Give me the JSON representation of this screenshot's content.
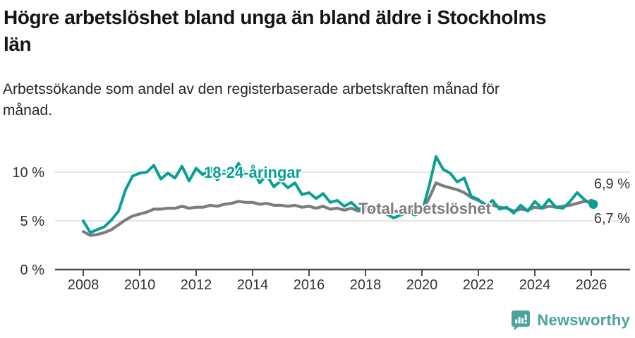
{
  "header": {
    "title_lines": [
      "Högre arbetslöshet bland unga än bland äldre i Stockholms",
      "län"
    ],
    "subtitle_lines": [
      "Arbetssökande som andel av den registerbaserade arbetskraften månad för",
      "månad."
    ]
  },
  "chart_data": {
    "type": "line",
    "title": "Högre arbetslöshet bland unga än bland äldre i Stockholms län",
    "subtitle": "Arbetssökande som andel av den registerbaserade arbetskraften månad för månad.",
    "unit": "%",
    "x_start": 2008.0,
    "x_step": 0.25,
    "xlim": [
      2007.8,
      2026.4
    ],
    "ylim": [
      0,
      12.5
    ],
    "grid": "horizontal",
    "x_ticks": [
      2008,
      2010,
      2012,
      2014,
      2016,
      2018,
      2020,
      2022,
      2024,
      2026
    ],
    "y_ticks": [
      0,
      5,
      10
    ],
    "y_tick_labels": [
      "0 %",
      "5 %",
      "10 %"
    ],
    "legend_position": "inline-labels",
    "series": [
      {
        "name": "Total arbetslöshet",
        "color": "#7d7d7d",
        "end_value": 6.9,
        "end_label": "6,9 %",
        "values": [
          3.9,
          3.5,
          3.6,
          3.8,
          4.1,
          4.6,
          5.1,
          5.5,
          5.7,
          5.9,
          6.2,
          6.2,
          6.3,
          6.3,
          6.5,
          6.3,
          6.4,
          6.4,
          6.6,
          6.5,
          6.7,
          6.8,
          7.0,
          6.9,
          6.9,
          6.7,
          6.8,
          6.6,
          6.6,
          6.5,
          6.6,
          6.4,
          6.5,
          6.3,
          6.5,
          6.2,
          6.3,
          6.1,
          6.3,
          6.0,
          6.1,
          5.9,
          6.1,
          5.9,
          6.0,
          5.9,
          6.1,
          6.0,
          6.0,
          7.3,
          8.9,
          8.6,
          8.4,
          8.2,
          7.9,
          7.4,
          7.1,
          6.7,
          6.6,
          6.4,
          6.3,
          6.0,
          6.2,
          6.1,
          6.4,
          6.3,
          6.5,
          6.4,
          6.5,
          6.6,
          6.8,
          7.0,
          6.9
        ]
      },
      {
        "name": "18-24-åringar",
        "color": "#08a096",
        "end_value": 6.7,
        "end_label": "6,7 %",
        "values": [
          5.0,
          3.8,
          4.1,
          4.4,
          5.1,
          6.0,
          8.2,
          9.6,
          9.9,
          10.0,
          10.7,
          9.3,
          9.9,
          9.4,
          10.6,
          9.1,
          10.4,
          9.7,
          10.5,
          9.2,
          10.1,
          9.7,
          10.9,
          9.7,
          10.3,
          8.9,
          9.7,
          8.5,
          9.1,
          8.4,
          8.9,
          7.7,
          7.9,
          7.3,
          7.8,
          6.9,
          7.1,
          6.5,
          6.9,
          6.2,
          6.4,
          6.0,
          6.4,
          5.7,
          5.3,
          5.6,
          5.9,
          5.6,
          5.9,
          8.5,
          11.6,
          10.3,
          9.9,
          9.0,
          9.4,
          7.5,
          7.2,
          6.5,
          7.1,
          6.2,
          6.4,
          5.8,
          6.6,
          6.0,
          7.0,
          6.3,
          7.2,
          6.4,
          6.3,
          7.0,
          7.9,
          7.2,
          6.7
        ]
      }
    ]
  },
  "footer": {
    "brand": "Newsworthy"
  },
  "colors": {
    "teal_line": "#08a096",
    "gray_line": "#7d7d7d",
    "grid": "#dcdcdc",
    "axis": "#4a4a4a",
    "tick_text": "#333333",
    "title_text": "#151515",
    "brand_teal": "#4ba49c"
  }
}
